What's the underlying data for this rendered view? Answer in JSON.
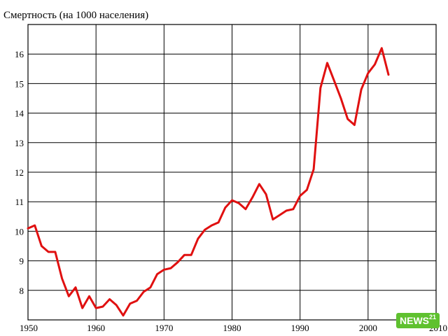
{
  "chart_data": {
    "type": "line",
    "title": "Смертность (на 1000 населения)",
    "xlabel": "",
    "ylabel": "",
    "xlim": [
      1950,
      2010
    ],
    "ylim": [
      7,
      17
    ],
    "x_ticks": [
      "1950",
      "1960",
      "1970",
      "1980",
      "1990",
      "2000",
      "2010"
    ],
    "y_ticks": [
      "8",
      "9",
      "10",
      "11",
      "12",
      "13",
      "14",
      "15",
      "16"
    ],
    "grid": true,
    "legend": "none",
    "series": [
      {
        "color": "#e01010",
        "x": [
          1950,
          1951,
          1952,
          1953,
          1954,
          1955,
          1956,
          1957,
          1958,
          1959,
          1960,
          1961,
          1962,
          1963,
          1964,
          1965,
          1966,
          1967,
          1968,
          1969,
          1970,
          1971,
          1972,
          1973,
          1974,
          1975,
          1976,
          1977,
          1978,
          1979,
          1980,
          1981,
          1982,
          1983,
          1984,
          1985,
          1986,
          1987,
          1988,
          1989,
          1990,
          1991,
          1992,
          1993,
          1994,
          1995,
          1996,
          1997,
          1998,
          1999,
          2000,
          2001,
          2002,
          2003
        ],
        "y": [
          10.1,
          10.2,
          9.5,
          9.3,
          9.3,
          8.4,
          7.8,
          8.1,
          7.4,
          7.8,
          7.4,
          7.45,
          7.7,
          7.5,
          7.15,
          7.55,
          7.65,
          7.95,
          8.1,
          8.55,
          8.7,
          8.75,
          8.95,
          9.2,
          9.2,
          9.75,
          10.05,
          10.2,
          10.3,
          10.8,
          11.05,
          10.95,
          10.75,
          11.15,
          11.6,
          11.25,
          10.4,
          10.55,
          10.7,
          10.75,
          11.2,
          11.4,
          12.1,
          14.85,
          15.7,
          15.1,
          14.5,
          13.8,
          13.6,
          14.8,
          15.35,
          15.65,
          16.2,
          15.3
        ]
      }
    ]
  },
  "logo": {
    "text": "NEWS",
    "badge": "21"
  }
}
